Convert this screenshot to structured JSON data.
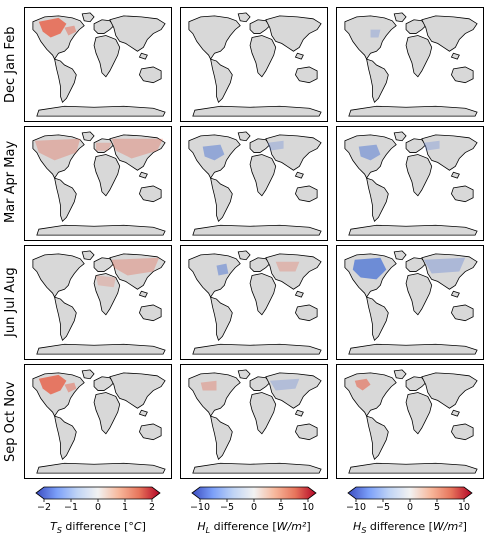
{
  "rows": [
    {
      "label": "Dec Jan Feb"
    },
    {
      "label": "Mar Apr May"
    },
    {
      "label": "Jun Jul Aug"
    },
    {
      "label": "Sep Oct Nov"
    }
  ],
  "columns": [
    {
      "label_main": "T",
      "label_sub": "S",
      "label_rest": " difference [",
      "label_unit": "°C",
      "label_end": "]",
      "ticks": [
        "−2",
        "−1",
        "0",
        "1",
        "2"
      ],
      "range": [
        -2,
        2
      ]
    },
    {
      "label_main": "H",
      "label_sub": "L",
      "label_rest": " difference [",
      "label_unit": "W/m²",
      "label_end": "]",
      "ticks": [
        "−10",
        "−5",
        "0",
        "5",
        "10"
      ],
      "range": [
        -10,
        10
      ]
    },
    {
      "label_main": "H",
      "label_sub": "S",
      "label_rest": " difference [",
      "label_unit": "W/m²",
      "label_end": "]",
      "ticks": [
        "−10",
        "−5",
        "0",
        "5",
        "10"
      ],
      "range": [
        -10,
        10
      ]
    }
  ],
  "colors": {
    "land": "#d8d8d8",
    "coast": "#000000",
    "warm": "#e8664f",
    "cool": "#5b7fd6",
    "colormap": [
      "#3b4cc0",
      "#7b9ff9",
      "#c0d4f5",
      "#f2f2f2",
      "#f7b89c",
      "#e7745b",
      "#b40426"
    ]
  },
  "anomalies": [
    [
      "warm-na-strong",
      "neutral",
      "cool-na-light"
    ],
    [
      "warm-broad",
      "cool-na",
      "cool-na"
    ],
    [
      "warm-eurasia",
      "cool-ne",
      "cool-na-strong"
    ],
    [
      "warm-na-strong",
      "cool-eurasia-light",
      "warm-na"
    ]
  ]
}
